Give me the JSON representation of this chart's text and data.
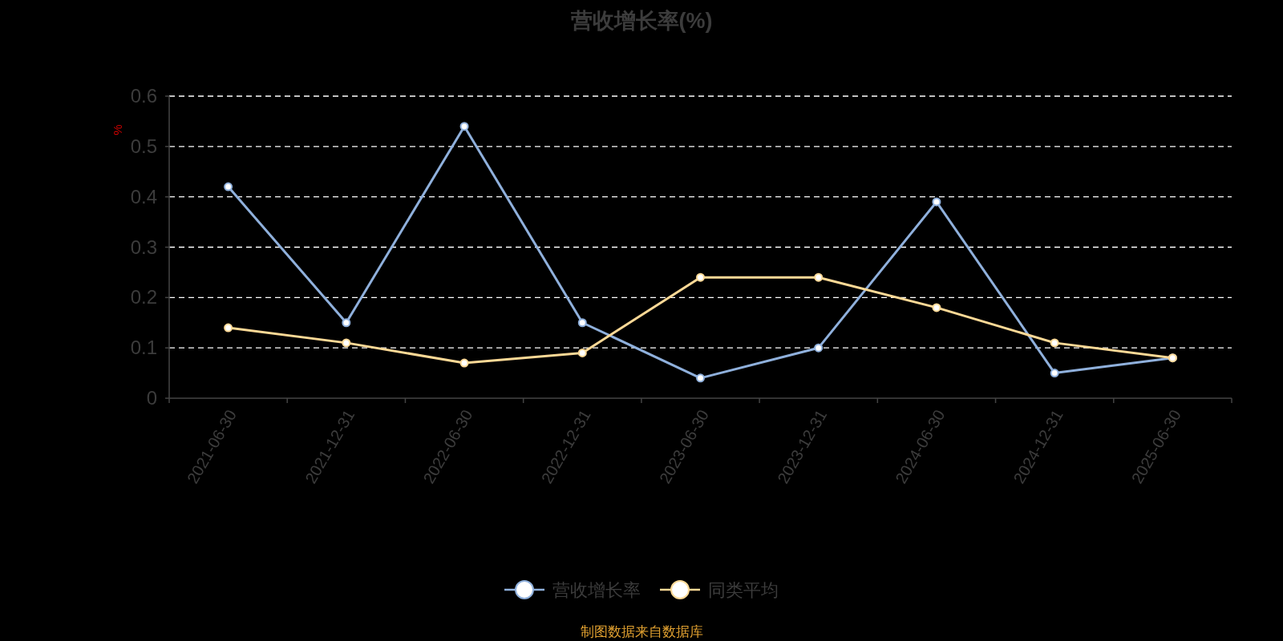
{
  "chart_data": {
    "type": "line",
    "title": "营收增长率(%)",
    "ylabel": "%",
    "categories": [
      "2021-06-30",
      "2021-12-31",
      "2022-06-30",
      "2022-12-31",
      "2023-06-30",
      "2023-12-31",
      "2024-06-30",
      "2024-12-31",
      "2025-06-30"
    ],
    "series": [
      {
        "name": "营收增长率",
        "color": "#8fb0dc",
        "values": [
          0.42,
          0.15,
          0.54,
          0.15,
          0.04,
          0.1,
          0.39,
          0.05,
          0.08
        ]
      },
      {
        "name": "同类平均",
        "color": "#fdd996",
        "values": [
          0.14,
          0.11,
          0.07,
          0.09,
          0.24,
          0.24,
          0.18,
          0.11,
          0.08
        ]
      }
    ],
    "ylim": [
      0,
      0.6
    ],
    "yticks": [
      0,
      0.1,
      0.2,
      0.3,
      0.4,
      0.5,
      0.6
    ],
    "grid": "y",
    "legend": "bottom",
    "marker": "circle",
    "line_style": "solid",
    "annotations": [
      "制图数据来自数据库"
    ]
  }
}
